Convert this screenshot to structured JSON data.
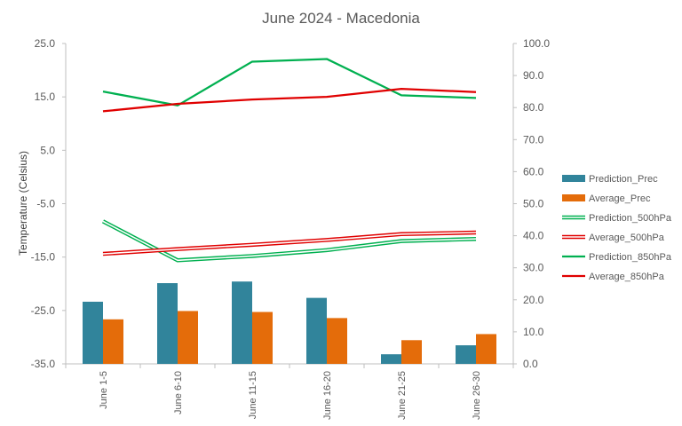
{
  "chart_data": {
    "type": "bar",
    "title": "June 2024 - Macedonia",
    "ylabel": "Temperature (Celsius)",
    "y2label": "",
    "categories": [
      "June 1-5",
      "June 6-10",
      "June 11-15",
      "June 16-20",
      "June 21-25",
      "June 26-30"
    ],
    "ylim": [
      -35,
      25
    ],
    "y_ticks": [
      "25.0",
      "15.0",
      "5.0",
      "-5.0",
      "-15.0",
      "-25.0",
      "-35.0"
    ],
    "y2lim": [
      0,
      100
    ],
    "y2_ticks": [
      "100.0",
      "90.0",
      "80.0",
      "70.0",
      "60.0",
      "50.0",
      "40.0",
      "30.0",
      "20.0",
      "10.0",
      "0.0"
    ],
    "grid": false,
    "legend_position": "right",
    "series": [
      {
        "name": "Prediction_Prec",
        "kind": "bar",
        "axis": "secondary",
        "color": "#31849B",
        "values": [
          19.4,
          25.2,
          25.7,
          20.6,
          3.0,
          5.8
        ]
      },
      {
        "name": "Average_Prec",
        "kind": "bar",
        "axis": "secondary",
        "color": "#E46C0A",
        "values": [
          13.9,
          16.5,
          16.2,
          14.3,
          7.4,
          9.3
        ]
      },
      {
        "name": "Prediction_500hPa",
        "kind": "line",
        "style": "double",
        "axis": "primary",
        "color": "#00B050",
        "values": [
          -8.3,
          -15.6,
          -14.8,
          -13.7,
          -12.0,
          -11.6
        ]
      },
      {
        "name": "Average_500hPa",
        "kind": "line",
        "style": "double",
        "axis": "primary",
        "color": "#E00000",
        "values": [
          -14.4,
          -13.5,
          -12.7,
          -11.8,
          -10.7,
          -10.4
        ]
      },
      {
        "name": "Prediction_850hPa",
        "kind": "line",
        "style": "solid",
        "axis": "primary",
        "color": "#00B050",
        "values": [
          16.0,
          13.4,
          21.6,
          22.1,
          15.3,
          14.8
        ]
      },
      {
        "name": "Average_850hPa",
        "kind": "line",
        "style": "solid",
        "axis": "primary",
        "color": "#E00000",
        "values": [
          12.3,
          13.7,
          14.5,
          15.0,
          16.5,
          15.9
        ]
      }
    ]
  }
}
